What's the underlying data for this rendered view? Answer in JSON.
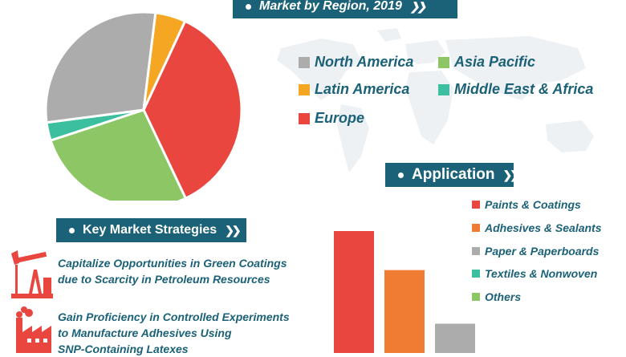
{
  "region_section": {
    "title": "Market by Region, 2019"
  },
  "application_section": {
    "title": "Application"
  },
  "strategies_section": {
    "title": "Key Market Strategies",
    "items": [
      {
        "icon": "oil-pump-icon",
        "line1": "Capitalize Opportunities in Green Coatings",
        "line2": "due to Scarcity in Petroleum Resources"
      },
      {
        "icon": "factory-icon",
        "line1": "Gain Proficiency in Controlled Experiments",
        "line2": "to Manufacture Adhesives Using",
        "line3": "SNP-Containing Latexes"
      }
    ]
  },
  "chart_data": [
    {
      "type": "pie",
      "title": "Market by Region, 2019",
      "slices": [
        {
          "name": "Europe",
          "value": 36,
          "color": "#e8463f"
        },
        {
          "name": "Asia Pacific",
          "value": 27,
          "color": "#8cc665"
        },
        {
          "name": "Middle East & Africa",
          "value": 3,
          "color": "#3cbf9e"
        },
        {
          "name": "North America",
          "value": 29,
          "color": "#acacac"
        },
        {
          "name": "Latin America",
          "value": 5,
          "color": "#f5a623"
        }
      ],
      "legend": [
        {
          "name": "North America",
          "color": "#acacac"
        },
        {
          "name": "Asia Pacific",
          "color": "#8cc665"
        },
        {
          "name": "Latin America",
          "color": "#f5a623"
        },
        {
          "name": "Middle East & Africa",
          "color": "#3cbf9e"
        },
        {
          "name": "Europe",
          "color": "#e8463f"
        }
      ],
      "legend_placement": "right"
    },
    {
      "type": "bar",
      "title": "Application",
      "categories": [
        "Paints & Coatings",
        "Adhesives & Sealants",
        "Paper & Paperboards",
        "Textiles & Nonwoven",
        "Others"
      ],
      "colors": [
        "#e8463f",
        "#f07c34",
        "#acacac",
        "#3cbf9e",
        "#8cc665"
      ],
      "visible_values": [
        100,
        68,
        24
      ],
      "legend_placement": "right"
    }
  ]
}
